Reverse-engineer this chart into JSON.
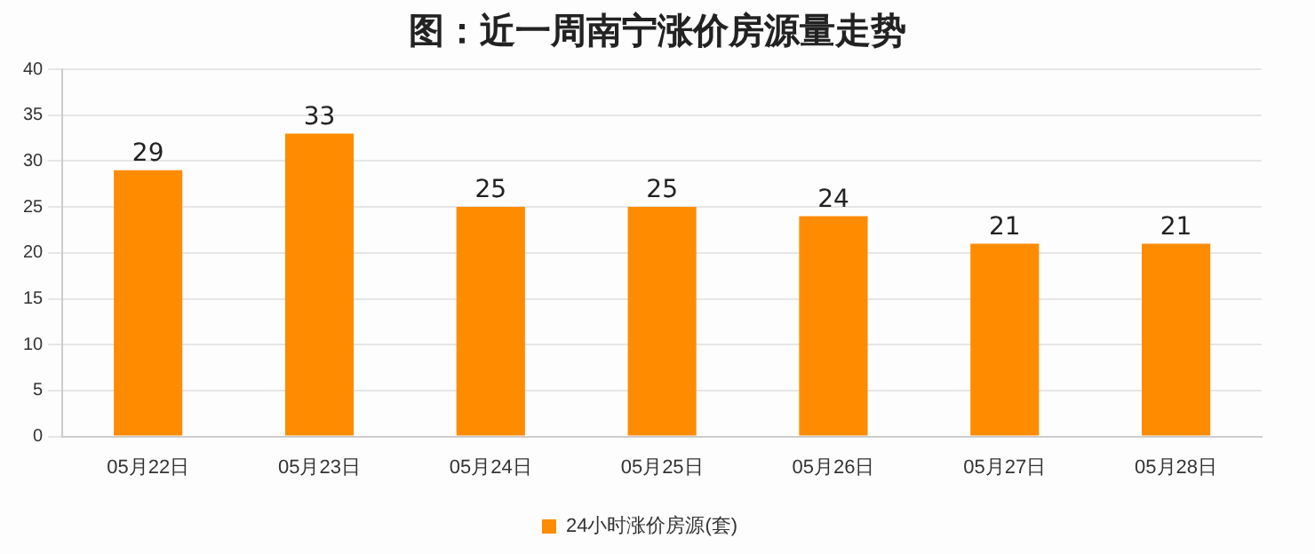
{
  "chart_data": {
    "type": "bar",
    "title": "图：近一周南宁涨价房源量走势",
    "categories": [
      "05月22日",
      "05月23日",
      "05月24日",
      "05月25日",
      "05月26日",
      "05月27日",
      "05月28日"
    ],
    "series": [
      {
        "name": "24小时涨价房源(套)",
        "color": "#ff8c00",
        "values": [
          29,
          33,
          25,
          25,
          24,
          21,
          21
        ]
      }
    ],
    "ylim": [
      0,
      40
    ],
    "yticks": [
      0,
      5,
      10,
      15,
      20,
      25,
      30,
      35,
      40
    ],
    "grid": "y",
    "legend": "bottom",
    "data_labels": true
  }
}
